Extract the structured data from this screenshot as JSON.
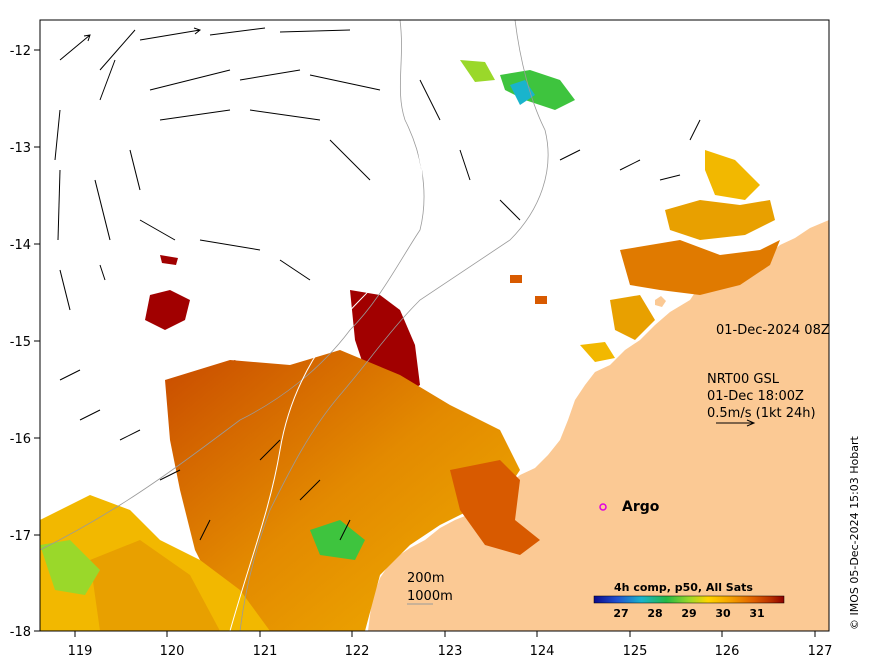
{
  "map": {
    "lon_ticks": [
      "119",
      "120",
      "121",
      "122",
      "123",
      "124",
      "125",
      "126",
      "127"
    ],
    "lat_ticks": [
      "-12",
      "-13",
      "-14",
      "-15",
      "-16",
      "-17",
      "-18"
    ],
    "lon_range": [
      118.6,
      127.0
    ],
    "lat_range": [
      -18.0,
      -11.72
    ]
  },
  "annotations": {
    "date": "01-Dec-2024 08Z",
    "current_product": "NRT00 GSL",
    "current_time": "01-Dec 18:00Z",
    "current_scale": "0.5m/s (1kt 24h)",
    "argo_label": "Argo",
    "isobath_200": "200m",
    "isobath_1000": "1000m"
  },
  "colorbar": {
    "title": "4h comp, p50, All Sats",
    "ticks": [
      "27",
      "28",
      "29",
      "30",
      "31"
    ],
    "colors": [
      "#0a0a8c",
      "#1f4fd0",
      "#19b4cc",
      "#22b845",
      "#9ad82a",
      "#ffd500",
      "#f5a000",
      "#e06000",
      "#b83000",
      "#8c0000"
    ]
  },
  "credit": "© IMOS 05-Dec-2024 15:03 Hobart",
  "colors": {
    "land": "#fbc994",
    "sst_dark_red": "#a10000",
    "sst_orange": "#e07a00",
    "sst_yellow": "#f2b800",
    "sst_green": "#3ec43e",
    "argo": "#e000e0"
  }
}
